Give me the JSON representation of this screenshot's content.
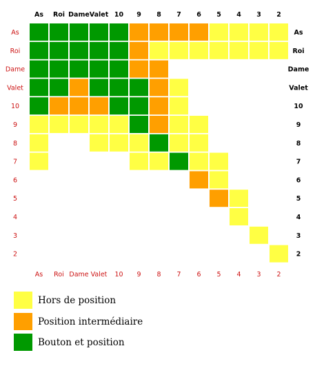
{
  "chart_data": {
    "type": "heatmap",
    "categories": [
      "As",
      "Roi",
      "Dame",
      "Valet",
      "10",
      "9",
      "8",
      "7",
      "6",
      "5",
      "4",
      "3",
      "2"
    ],
    "legend": [
      {
        "key": "Y",
        "label": "Hors de position",
        "color": "#ffff44"
      },
      {
        "key": "O",
        "label": "Position intermédiaire",
        "color": "#ff9f00"
      },
      {
        "key": "G",
        "label": "Bouton et position",
        "color": "#009900"
      }
    ],
    "grid": [
      [
        "G",
        "G",
        "G",
        "G",
        "G",
        "O",
        "O",
        "O",
        "O",
        "Y",
        "Y",
        "Y",
        "Y"
      ],
      [
        "G",
        "G",
        "G",
        "G",
        "G",
        "O",
        "Y",
        "Y",
        "Y",
        "Y",
        "Y",
        "Y",
        "Y"
      ],
      [
        "G",
        "G",
        "G",
        "G",
        "G",
        "O",
        "O",
        "",
        "",
        "",
        "",
        "",
        ""
      ],
      [
        "G",
        "G",
        "O",
        "G",
        "G",
        "G",
        "O",
        "Y",
        "",
        "",
        "",
        "",
        ""
      ],
      [
        "G",
        "O",
        "O",
        "O",
        "G",
        "G",
        "O",
        "Y",
        "",
        "",
        "",
        "",
        ""
      ],
      [
        "Y",
        "Y",
        "Y",
        "Y",
        "Y",
        "G",
        "O",
        "Y",
        "Y",
        "",
        "",
        "",
        ""
      ],
      [
        "Y",
        "",
        "",
        "Y",
        "Y",
        "Y",
        "G",
        "Y",
        "Y",
        "",
        "",
        "",
        ""
      ],
      [
        "Y",
        "",
        "",
        "",
        "",
        "Y",
        "Y",
        "G",
        "Y",
        "Y",
        "",
        "",
        ""
      ],
      [
        "",
        "",
        "",
        "",
        "",
        "",
        "",
        "",
        "O",
        "Y",
        "",
        "",
        ""
      ],
      [
        "",
        "",
        "",
        "",
        "",
        "",
        "",
        "",
        "",
        "O",
        "Y",
        "",
        ""
      ],
      [
        "",
        "",
        "",
        "",
        "",
        "",
        "",
        "",
        "",
        "",
        "Y",
        "",
        ""
      ],
      [
        "",
        "",
        "",
        "",
        "",
        "",
        "",
        "",
        "",
        "",
        "",
        "Y",
        ""
      ],
      [
        "",
        "",
        "",
        "",
        "",
        "",
        "",
        "",
        "",
        "",
        "",
        "",
        "Y"
      ]
    ]
  },
  "legend_labels": {
    "hors": "Hors de position",
    "intermediaire": "Position intermédiaire",
    "bouton": "Bouton et position"
  },
  "colors": {
    "Y": "#ffff44",
    "O": "#ff9f00",
    "G": "#009900"
  }
}
